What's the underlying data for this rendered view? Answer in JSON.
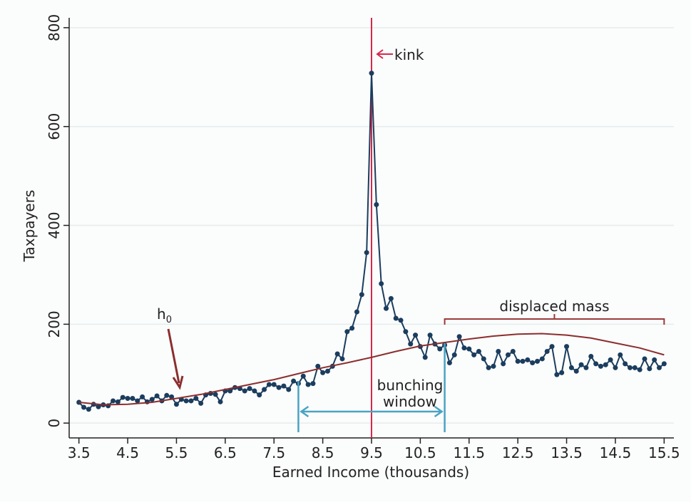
{
  "chart_data": {
    "type": "line",
    "x_label": "Earned Income (thousands)",
    "y_label": "Taxpayers",
    "xlim": [
      3.3,
      15.7
    ],
    "ylim": [
      -30,
      820
    ],
    "xticks": [
      3.5,
      4.5,
      5.5,
      6.5,
      7.5,
      8.5,
      9.5,
      10.5,
      11.5,
      12.5,
      13.5,
      14.5,
      15.5
    ],
    "yticks": [
      0,
      200,
      400,
      600,
      800
    ],
    "grid": true,
    "series": [
      {
        "color": "#1b3d5e",
        "markers": true,
        "x": [
          3.5,
          3.6,
          3.7,
          3.8,
          3.9,
          4.0,
          4.1,
          4.2,
          4.3,
          4.4,
          4.5,
          4.6,
          4.7,
          4.8,
          4.9,
          5.0,
          5.1,
          5.2,
          5.3,
          5.4,
          5.5,
          5.6,
          5.7,
          5.8,
          5.9,
          6.0,
          6.1,
          6.2,
          6.3,
          6.4,
          6.5,
          6.6,
          6.7,
          6.8,
          6.9,
          7.0,
          7.1,
          7.2,
          7.3,
          7.4,
          7.5,
          7.6,
          7.7,
          7.8,
          7.9,
          8.0,
          8.1,
          8.2,
          8.3,
          8.4,
          8.5,
          8.6,
          8.7,
          8.8,
          8.9,
          9.0,
          9.1,
          9.2,
          9.3,
          9.4,
          9.5,
          9.6,
          9.7,
          9.8,
          9.9,
          10.0,
          10.1,
          10.2,
          10.3,
          10.4,
          10.5,
          10.6,
          10.7,
          10.8,
          10.9,
          11.0,
          11.1,
          11.2,
          11.3,
          11.4,
          11.5,
          11.6,
          11.7,
          11.8,
          11.9,
          12.0,
          12.1,
          12.2,
          12.3,
          12.4,
          12.5,
          12.6,
          12.7,
          12.8,
          12.9,
          13.0,
          13.1,
          13.2,
          13.3,
          13.4,
          13.5,
          13.6,
          13.7,
          13.8,
          13.9,
          14.0,
          14.1,
          14.2,
          14.3,
          14.4,
          14.5,
          14.6,
          14.7,
          14.8,
          14.9,
          15.0,
          15.1,
          15.2,
          15.3,
          15.4,
          15.5
        ],
        "values": [
          42,
          32,
          28,
          38,
          33,
          37,
          35,
          45,
          43,
          52,
          50,
          50,
          45,
          53,
          43,
          48,
          55,
          45,
          56,
          53,
          38,
          48,
          45,
          45,
          50,
          40,
          57,
          60,
          58,
          43,
          65,
          65,
          72,
          70,
          65,
          70,
          65,
          57,
          68,
          78,
          78,
          72,
          75,
          68,
          85,
          80,
          95,
          78,
          80,
          115,
          102,
          105,
          115,
          140,
          130,
          185,
          192,
          225,
          260,
          345,
          708,
          442,
          282,
          232,
          252,
          212,
          208,
          185,
          160,
          178,
          155,
          133,
          178,
          160,
          150,
          158,
          122,
          138,
          175,
          152,
          150,
          138,
          145,
          130,
          112,
          115,
          145,
          120,
          138,
          145,
          125,
          125,
          128,
          122,
          125,
          130,
          145,
          155,
          98,
          102,
          155,
          112,
          105,
          118,
          112,
          135,
          120,
          115,
          118,
          128,
          112,
          138,
          120,
          112,
          112,
          108,
          130,
          110,
          128,
          112,
          120
        ]
      },
      {
        "color": "#8b2e2e",
        "markers": false,
        "x": [
          3.5,
          4.0,
          4.5,
          5.0,
          5.5,
          6.0,
          6.5,
          7.0,
          7.5,
          8.0,
          8.5,
          9.0,
          9.5,
          10.0,
          10.5,
          11.0,
          11.5,
          12.0,
          12.5,
          13.0,
          13.5,
          14.0,
          14.5,
          15.0,
          15.5
        ],
        "values": [
          42,
          37,
          38,
          42,
          50,
          58,
          68,
          78,
          88,
          100,
          112,
          122,
          133,
          145,
          156,
          163,
          170,
          176,
          180,
          181,
          178,
          172,
          162,
          152,
          138
        ]
      }
    ],
    "annotations": {
      "kink": {
        "x": 9.5,
        "label": "kink",
        "color": "#d6284b"
      },
      "bunching_window": {
        "x": [
          8.0,
          11.0
        ],
        "label": [
          "bunching",
          "window"
        ],
        "color": "#4aa3c4"
      },
      "displaced_mass": {
        "x": [
          11.0,
          15.5
        ],
        "label": "displaced mass",
        "color": "#9b3a3a"
      },
      "h0": {
        "label": "h",
        "subscript": "0",
        "color": "#8b2e2e"
      }
    }
  }
}
